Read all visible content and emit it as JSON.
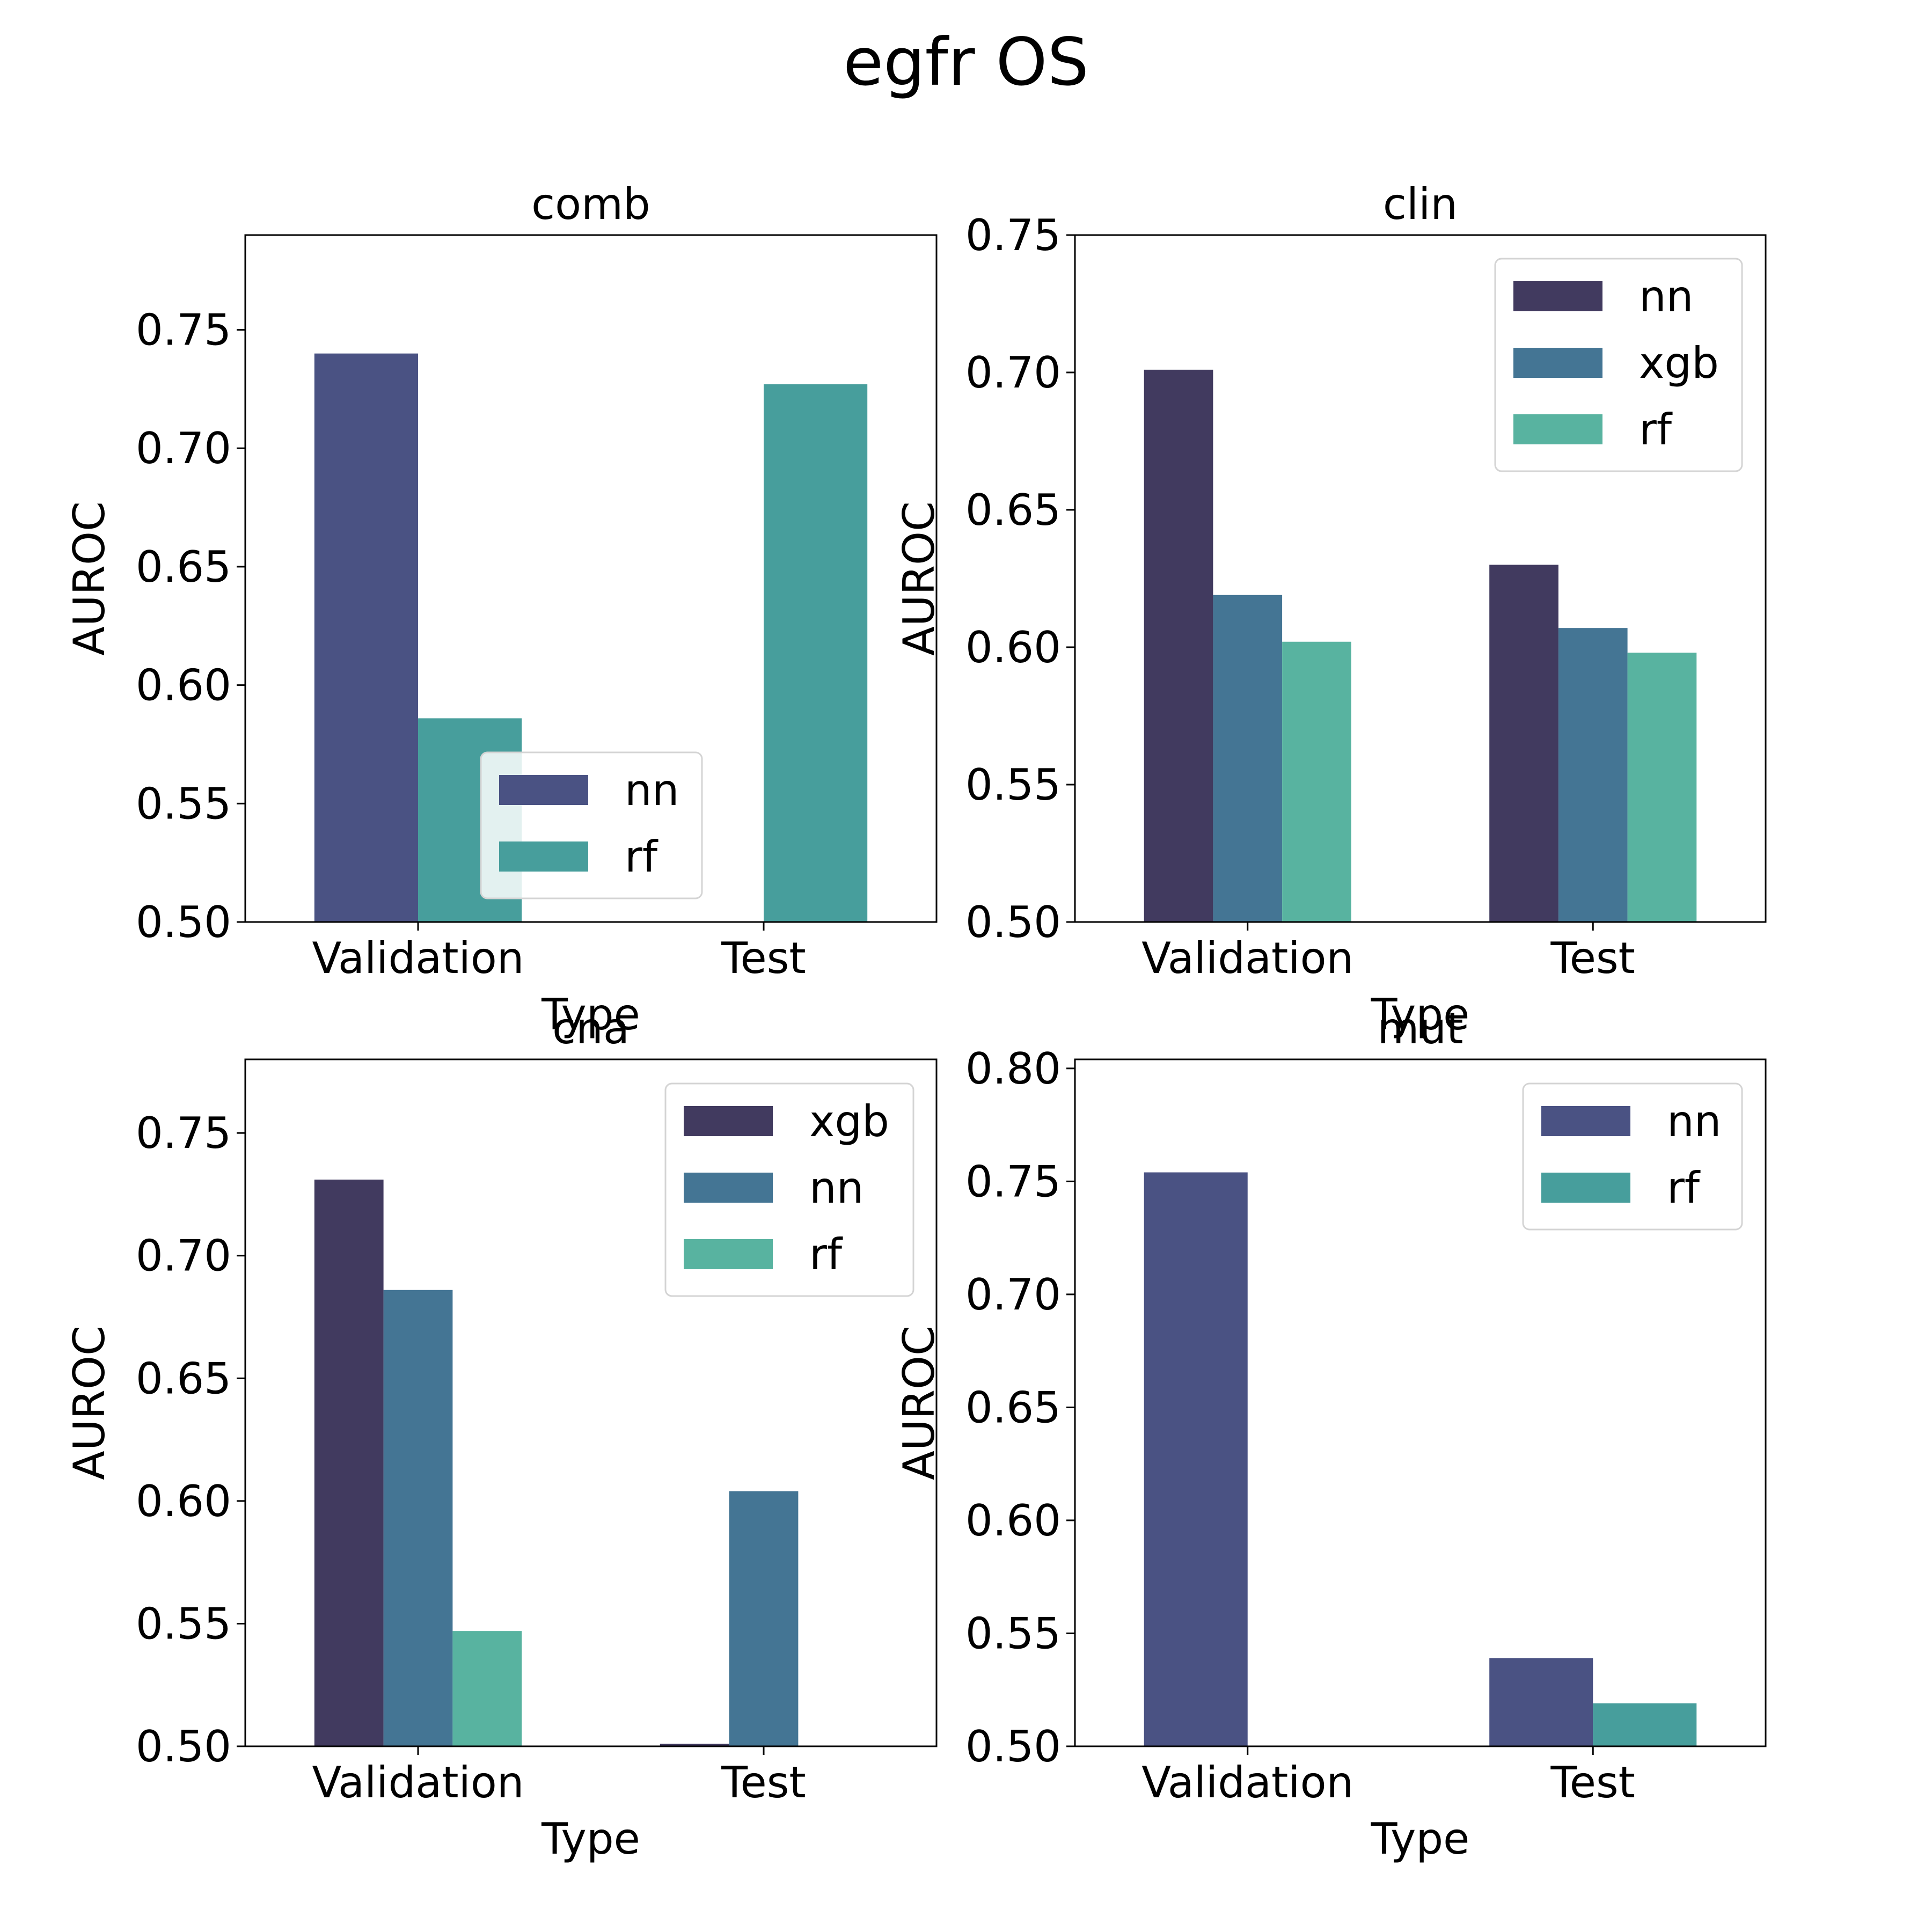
{
  "title": "egfr OS",
  "colors": {
    "palette_three": [
      "#413a5f",
      "#447594",
      "#58b3a0"
    ],
    "palette_two": [
      "#4a5283",
      "#479e9c"
    ]
  },
  "chart_data": [
    {
      "type": "bar",
      "title": "comb",
      "xlabel": "Type",
      "ylabel": "AUROC",
      "categories": [
        "Validation",
        "Test"
      ],
      "ylim": [
        0.5,
        0.79
      ],
      "yticks": [
        "0.50",
        "0.55",
        "0.60",
        "0.65",
        "0.70",
        "0.75"
      ],
      "legend_position": "lower-center",
      "series": [
        {
          "name": "nn",
          "color": "#4a5283",
          "values": [
            0.74,
            null
          ]
        },
        {
          "name": "rf",
          "color": "#479e9c",
          "values": [
            0.586,
            0.727
          ]
        }
      ]
    },
    {
      "type": "bar",
      "title": "clin",
      "xlabel": "Type",
      "ylabel": "AUROC",
      "categories": [
        "Validation",
        "Test"
      ],
      "ylim": [
        0.5,
        0.75
      ],
      "yticks": [
        "0.50",
        "0.55",
        "0.60",
        "0.65",
        "0.70",
        "0.75"
      ],
      "legend_position": "upper-right",
      "series": [
        {
          "name": "nn",
          "color": "#413a5f",
          "values": [
            0.701,
            0.63
          ]
        },
        {
          "name": "xgb",
          "color": "#447594",
          "values": [
            0.619,
            0.607
          ]
        },
        {
          "name": "rf",
          "color": "#58b3a0",
          "values": [
            0.602,
            0.598
          ]
        }
      ]
    },
    {
      "type": "bar",
      "title": "cna",
      "xlabel": "Type",
      "ylabel": "AUROC",
      "categories": [
        "Validation",
        "Test"
      ],
      "ylim": [
        0.5,
        0.78
      ],
      "yticks": [
        "0.50",
        "0.55",
        "0.60",
        "0.65",
        "0.70",
        "0.75"
      ],
      "legend_position": "upper-right",
      "series": [
        {
          "name": "xgb",
          "color": "#413a5f",
          "values": [
            0.731,
            0.501
          ]
        },
        {
          "name": "nn",
          "color": "#447594",
          "values": [
            0.686,
            0.604
          ]
        },
        {
          "name": "rf",
          "color": "#58b3a0",
          "values": [
            0.547,
            null
          ]
        }
      ]
    },
    {
      "type": "bar",
      "title": "mut",
      "xlabel": "Type",
      "ylabel": "AUROC",
      "categories": [
        "Validation",
        "Test"
      ],
      "ylim": [
        0.5,
        0.804
      ],
      "yticks": [
        "0.50",
        "0.55",
        "0.60",
        "0.65",
        "0.70",
        "0.75",
        "0.80"
      ],
      "legend_position": "upper-right",
      "series": [
        {
          "name": "nn",
          "color": "#4a5283",
          "values": [
            0.754,
            0.539
          ]
        },
        {
          "name": "rf",
          "color": "#479e9c",
          "values": [
            null,
            0.519
          ]
        }
      ]
    }
  ]
}
